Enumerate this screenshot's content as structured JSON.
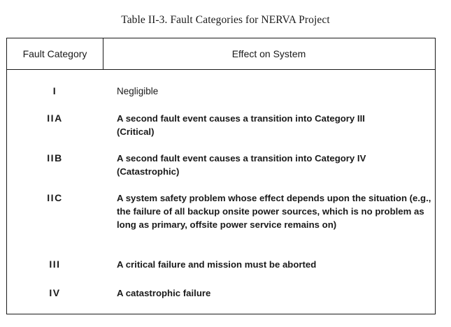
{
  "caption": "Table II-3. Fault Categories for NERVA Project",
  "table": {
    "headers": {
      "category": "Fault Category",
      "effect": "Effect on System"
    },
    "rows": [
      {
        "category": "I",
        "effect": "Negligible"
      },
      {
        "category": "IIA",
        "effect": "A second fault event causes a transition into Category III (Critical)"
      },
      {
        "category": "IIB",
        "effect": "A second fault event causes a transition into Category IV (Catastrophic)"
      },
      {
        "category": "IIC",
        "effect": "A system safety problem whose effect depends upon the situation (e.g., the failure of all backup onsite power sources, which is no problem as long as primary, offsite power service remains on)"
      },
      {
        "category": "III",
        "effect": "A critical failure and mission must be aborted"
      },
      {
        "category": "IV",
        "effect": "A catastrophic failure"
      }
    ]
  }
}
